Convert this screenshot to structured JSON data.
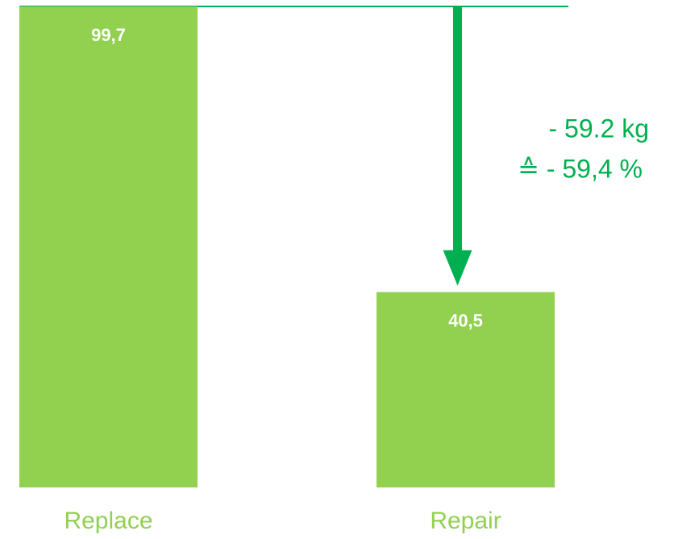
{
  "chart_data": {
    "type": "bar",
    "categories": [
      "Replace",
      "Repair"
    ],
    "values": [
      99.7,
      40.5
    ],
    "value_labels": [
      "99,7",
      "40,5"
    ],
    "color": "#92d050",
    "annotations": [
      "- 59.2 kg",
      "≙ - 59,4 %"
    ],
    "annotation_color": "#00b050"
  }
}
